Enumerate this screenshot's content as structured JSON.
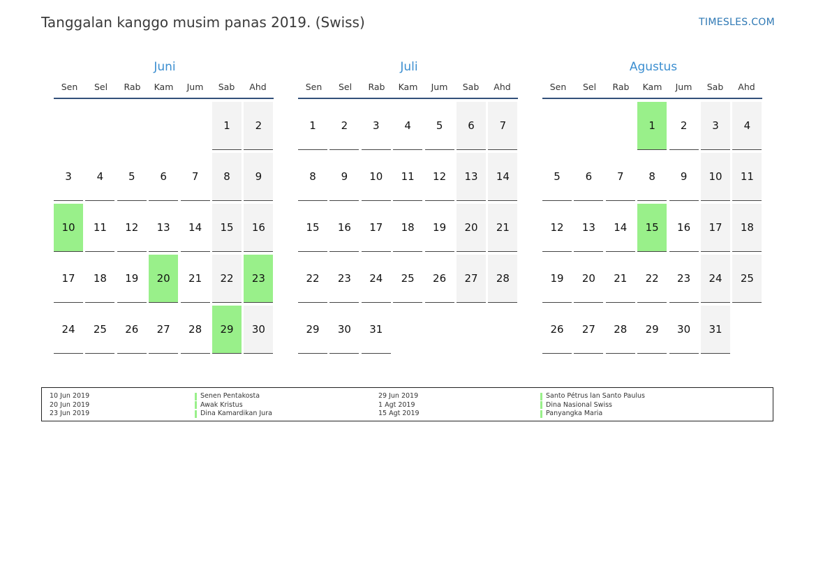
{
  "header": {
    "title": "Tanggalan kanggo musim panas 2019. (Swiss)",
    "brand": "TIMESLES.COM"
  },
  "colors": {
    "holiday": "#99f08a",
    "weekend": "#f3f3f3",
    "month_title": "#3b8ed0",
    "rule": "#33507a"
  },
  "weekdays": [
    "Sen",
    "Sel",
    "Rab",
    "Kam",
    "Jum",
    "Sab",
    "Ahd"
  ],
  "months": [
    {
      "name": "Juni",
      "first_weekday": 5,
      "days": 30,
      "holidays": [
        10,
        20,
        23,
        29
      ]
    },
    {
      "name": "Juli",
      "first_weekday": 0,
      "days": 31,
      "holidays": []
    },
    {
      "name": "Agustus",
      "first_weekday": 3,
      "days": 31,
      "holidays": [
        1,
        15
      ]
    }
  ],
  "legend": [
    {
      "date": "10 Jun 2019",
      "name": "Senen Pentakosta"
    },
    {
      "date": "20 Jun 2019",
      "name": "Awak Kristus"
    },
    {
      "date": "23 Jun 2019",
      "name": "Dina Kamardikan Jura"
    },
    {
      "date": "29 Jun 2019",
      "name": "Santo Pétrus lan Santo Paulus"
    },
    {
      "date": "1 Agt 2019",
      "name": "Dina Nasional Swiss"
    },
    {
      "date": "15 Agt 2019",
      "name": "Panyangka Maria"
    }
  ]
}
